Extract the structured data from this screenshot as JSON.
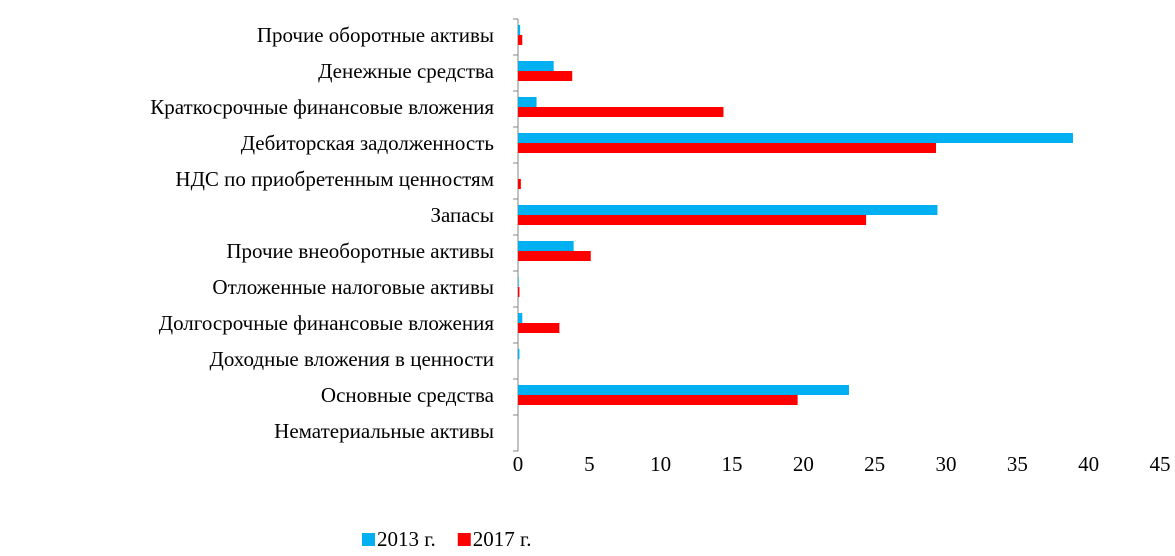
{
  "chart_data": {
    "type": "bar",
    "orientation": "horizontal",
    "categories": [
      "Прочие оборотные активы",
      "Денежные средства",
      "Краткосрочные финансовые вложения",
      "Дебиторская задолженность",
      "НДС по приобретенным ценностям",
      "Запасы",
      "Прочие внеоборотные активы",
      "Отложенные налоговые активы",
      "Долгосрочные финансовые вложения",
      "Доходные вложения в ценности",
      "Основные средства",
      "Нематериальные активы"
    ],
    "series": [
      {
        "name": "2013 г.",
        "color": "#00b0f0",
        "values": [
          0.15,
          2.5,
          1.3,
          38.9,
          0,
          29.4,
          3.9,
          0.05,
          0.3,
          0.1,
          23.2,
          0
        ]
      },
      {
        "name": "2017 г.",
        "color": "#ff0000",
        "values": [
          0.3,
          3.8,
          14.4,
          29.3,
          0.2,
          24.4,
          5.1,
          0.1,
          2.9,
          0,
          19.6,
          0
        ]
      }
    ],
    "xlim": [
      0,
      45
    ],
    "xticks": [
      0,
      5,
      10,
      15,
      20,
      25,
      30,
      35,
      40,
      45
    ],
    "grid": false,
    "legend": "bottom"
  }
}
